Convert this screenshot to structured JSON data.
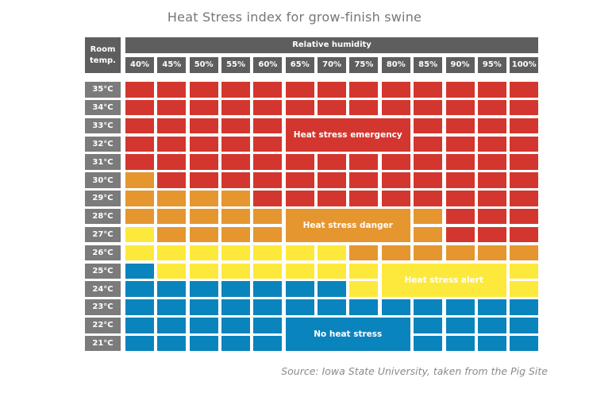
{
  "chart_data": {
    "type": "heatmap",
    "title": "Heat Stress index for grow-finish swine",
    "row_header": "Room temp.",
    "column_header": "Relative humidity",
    "columns": [
      "40%",
      "45%",
      "50%",
      "55%",
      "60%",
      "65%",
      "70%",
      "75%",
      "80%",
      "85%",
      "90%",
      "95%",
      "100%"
    ],
    "rows": [
      "35°C",
      "34°C",
      "33°C",
      "32°C",
      "31°C",
      "30°C",
      "29°C",
      "28°C",
      "27°C",
      "26°C",
      "25°C",
      "24°C",
      "23°C",
      "22°C",
      "21°C"
    ],
    "categories": {
      "R": {
        "label": "Heat stress emergency",
        "color": "#d3362e"
      },
      "O": {
        "label": "Heat stress danger",
        "color": "#e5962f"
      },
      "Y": {
        "label": "Heat stress alert",
        "color": "#fde93b"
      },
      "B": {
        "label": "No heat stress",
        "color": "#0a84bd"
      }
    },
    "grid": [
      "RRRRRRRRRRRRR",
      "RRRRRRRRRRRRR",
      "RRRRRRRRRRRRR",
      "RRRRRRRRRRRRR",
      "RRRRRRRRRRRRR",
      "ORRRRRRRRRRRR",
      "OOOORRRRRRRRR",
      "OOOOOOOOOORRR",
      "YOOOOOOOOORRR",
      "YYYYYYYOOOOOO",
      "BYYYYYYYYYYYY",
      "BBBBBBBYYYYYY",
      "BBBBBBBBBBBBB",
      "BBBBBBBBBBBBB",
      "BBBBBBBBBBBBB"
    ],
    "zone_labels": [
      {
        "category": "R",
        "text": "Heat stress emergency",
        "rows": [
          2,
          3
        ],
        "cols": [
          5,
          8
        ]
      },
      {
        "category": "O",
        "text": "Heat stress danger",
        "rows": [
          7,
          8
        ],
        "cols": [
          5,
          8
        ]
      },
      {
        "category": "Y",
        "text": "Heat stress alert",
        "rows": [
          10,
          11
        ],
        "cols": [
          8,
          11
        ]
      },
      {
        "category": "B",
        "text": "No heat stress",
        "rows": [
          13,
          14
        ],
        "cols": [
          5,
          8
        ]
      }
    ],
    "source": "Source: Iowa State University, taken from the Pig Site"
  }
}
